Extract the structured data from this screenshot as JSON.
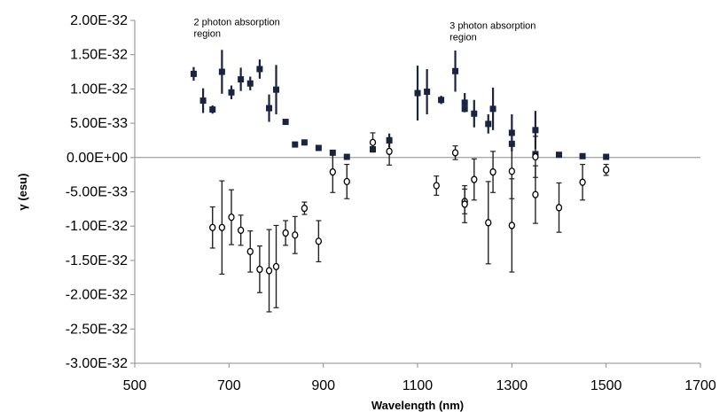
{
  "chart_data": {
    "type": "scatter",
    "title": "",
    "xlabel": "Wavelength (nm)",
    "ylabel": "γ (esu)",
    "xlim": [
      500,
      1700
    ],
    "ylim": [
      -3e-32,
      2e-32
    ],
    "x_ticks": [
      500,
      700,
      900,
      1100,
      1300,
      1500,
      1700
    ],
    "x_tick_labels": [
      "500",
      "700",
      "900",
      "1100",
      "1300",
      "1500",
      "1700"
    ],
    "y_ticks": [
      2e-32,
      1.5e-32,
      1e-32,
      5e-33,
      0,
      -5e-33,
      -1e-32,
      -1.5e-32,
      -2e-32,
      -2.5e-32,
      -3e-32
    ],
    "y_tick_labels": [
      "2.00E-32",
      "1.50E-32",
      "1.00E-32",
      "5.00E-33",
      "0.00E+00",
      "-5.00E-33",
      "-1.00E-32",
      "-1.50E-32",
      "-2.00E-32",
      "-2.50E-32",
      "-3.00E-32"
    ],
    "grid": false,
    "annotations": [
      {
        "lines": [
          "2 photon absorption",
          "region"
        ],
        "x": 625,
        "y": 1.93e-32
      },
      {
        "lines": [
          "3 photon absorption",
          "region"
        ],
        "x": 1168,
        "y": 1.88e-32
      }
    ],
    "series": [
      {
        "marker": "square",
        "color": "#1a2340",
        "points": [
          {
            "x": 625,
            "y": 1.22e-32,
            "err": 1e-33
          },
          {
            "x": 645,
            "y": 8.3e-33,
            "err": 1.8e-33
          },
          {
            "x": 665,
            "y": 7e-33,
            "err": 6e-34
          },
          {
            "x": 685,
            "y": 1.25e-32,
            "err": 3.2e-33
          },
          {
            "x": 705,
            "y": 9.5e-33,
            "err": 1e-33
          },
          {
            "x": 725,
            "y": 1.14e-32,
            "err": 1.7e-33
          },
          {
            "x": 745,
            "y": 1.08e-32,
            "err": 1e-33
          },
          {
            "x": 765,
            "y": 1.29e-32,
            "err": 1.4e-33
          },
          {
            "x": 785,
            "y": 7.2e-33,
            "err": 2e-33
          },
          {
            "x": 800,
            "y": 9.9e-33,
            "err": 3.6e-33
          },
          {
            "x": 820,
            "y": 5.2e-33,
            "err": 0
          },
          {
            "x": 840,
            "y": 1.9e-33,
            "err": 0
          },
          {
            "x": 860,
            "y": 2.2e-33,
            "err": 0
          },
          {
            "x": 890,
            "y": 1.4e-33,
            "err": 0
          },
          {
            "x": 920,
            "y": 7e-34,
            "err": 0
          },
          {
            "x": 950,
            "y": 1e-34,
            "err": 0
          },
          {
            "x": 1005,
            "y": 1.2e-33,
            "err": 0
          },
          {
            "x": 1040,
            "y": 2.5e-33,
            "err": 1e-33
          },
          {
            "x": 1100,
            "y": 9.4e-33,
            "err": 4e-33
          },
          {
            "x": 1120,
            "y": 9.6e-33,
            "err": 3.3e-33
          },
          {
            "x": 1150,
            "y": 8.4e-33,
            "err": 6e-34
          },
          {
            "x": 1180,
            "y": 1.26e-32,
            "err": 3e-33
          },
          {
            "x": 1200,
            "y": 8e-33,
            "err": 1.4e-33
          },
          {
            "x": 1200,
            "y": 7.1e-33,
            "err": 0
          },
          {
            "x": 1220,
            "y": 6.4e-33,
            "err": 2e-33
          },
          {
            "x": 1250,
            "y": 4.9e-33,
            "err": 1.4e-33
          },
          {
            "x": 1260,
            "y": 7.1e-33,
            "err": 3.1e-33
          },
          {
            "x": 1300,
            "y": 3.6e-33,
            "err": 2.7e-33
          },
          {
            "x": 1300,
            "y": 2e-33,
            "err": 0
          },
          {
            "x": 1350,
            "y": 4e-33,
            "err": 2.8e-33
          },
          {
            "x": 1350,
            "y": 5e-34,
            "err": 0
          },
          {
            "x": 1400,
            "y": 4e-34,
            "err": 0
          },
          {
            "x": 1450,
            "y": 2e-34,
            "err": 0
          },
          {
            "x": 1500,
            "y": 1e-34,
            "err": 0
          }
        ]
      },
      {
        "marker": "circle",
        "color": "#000000",
        "points": [
          {
            "x": 665,
            "y": -1.02e-32,
            "err": 3e-33
          },
          {
            "x": 685,
            "y": -1.02e-32,
            "err": 6.8e-33
          },
          {
            "x": 705,
            "y": -8.7e-33,
            "err": 4e-33
          },
          {
            "x": 725,
            "y": -1.06e-32,
            "err": 2.2e-33
          },
          {
            "x": 745,
            "y": -1.37e-32,
            "err": 3e-33
          },
          {
            "x": 765,
            "y": -1.63e-32,
            "err": 3.4e-33
          },
          {
            "x": 785,
            "y": -1.65e-32,
            "err": 6e-33
          },
          {
            "x": 800,
            "y": -1.59e-32,
            "err": 6e-33
          },
          {
            "x": 820,
            "y": -1.1e-32,
            "err": 1.8e-33
          },
          {
            "x": 840,
            "y": -1.13e-32,
            "err": 2.7e-33
          },
          {
            "x": 860,
            "y": -7.4e-33,
            "err": 9e-34
          },
          {
            "x": 890,
            "y": -1.22e-32,
            "err": 3e-33
          },
          {
            "x": 920,
            "y": -2.1e-33,
            "err": 3e-33
          },
          {
            "x": 950,
            "y": -3.5e-33,
            "err": 2.5e-33
          },
          {
            "x": 1005,
            "y": 2.2e-33,
            "err": 1.4e-33
          },
          {
            "x": 1040,
            "y": 9e-34,
            "err": 2e-33
          },
          {
            "x": 1140,
            "y": -4.1e-33,
            "err": 1.4e-33
          },
          {
            "x": 1180,
            "y": 7e-34,
            "err": 1e-33
          },
          {
            "x": 1200,
            "y": -6.4e-33,
            "err": 1.8e-33
          },
          {
            "x": 1200,
            "y": -6.8e-33,
            "err": 2.7e-33
          },
          {
            "x": 1220,
            "y": -3.2e-33,
            "err": 3e-33
          },
          {
            "x": 1250,
            "y": -9.5e-33,
            "err": 6e-33
          },
          {
            "x": 1260,
            "y": -2.1e-33,
            "err": 3e-33
          },
          {
            "x": 1300,
            "y": -9.9e-33,
            "err": 6.8e-33
          },
          {
            "x": 1300,
            "y": -2e-33,
            "err": 4e-33
          },
          {
            "x": 1350,
            "y": -5.4e-33,
            "err": 4.2e-33
          },
          {
            "x": 1350,
            "y": 1e-34,
            "err": 3e-33
          },
          {
            "x": 1400,
            "y": -7.3e-33,
            "err": 3.6e-33
          },
          {
            "x": 1450,
            "y": -3.6e-33,
            "err": 2.6e-33
          },
          {
            "x": 1500,
            "y": -1.8e-33,
            "err": 8e-34
          }
        ]
      }
    ]
  }
}
